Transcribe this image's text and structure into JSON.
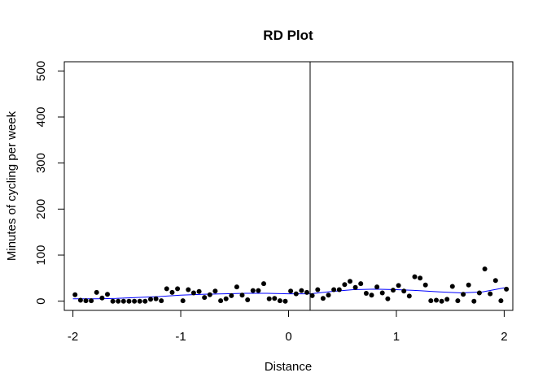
{
  "chart_data": {
    "type": "scatter",
    "title": "RD Plot",
    "xlabel": "Distance",
    "ylabel": "Minutes of cycling per week",
    "xlim": [
      -2.08,
      2.08
    ],
    "ylim": [
      -20,
      520
    ],
    "xticks": [
      -2,
      -1,
      0,
      1,
      2
    ],
    "xtick_labels": [
      "-2",
      "-1",
      "0",
      "1",
      "2"
    ],
    "yticks": [
      0,
      100,
      200,
      300,
      400,
      500
    ],
    "ytick_labels": [
      "0",
      "100",
      "200",
      "300",
      "400",
      "500"
    ],
    "cutoff": 0.2,
    "grid": false,
    "colors": {
      "points": "#000000",
      "fit": "#0000ff",
      "cutoff": "#000000"
    },
    "points": [
      [
        -1.98,
        14
      ],
      [
        -1.93,
        2
      ],
      [
        -1.88,
        1
      ],
      [
        -1.83,
        1
      ],
      [
        -1.78,
        19
      ],
      [
        -1.73,
        7
      ],
      [
        -1.68,
        15
      ],
      [
        -1.63,
        0
      ],
      [
        -1.58,
        0
      ],
      [
        -1.53,
        0
      ],
      [
        -1.48,
        0
      ],
      [
        -1.43,
        0
      ],
      [
        -1.38,
        0
      ],
      [
        -1.33,
        0
      ],
      [
        -1.28,
        4
      ],
      [
        -1.23,
        5
      ],
      [
        -1.18,
        1
      ],
      [
        -1.13,
        27
      ],
      [
        -1.08,
        19
      ],
      [
        -1.03,
        27
      ],
      [
        -0.98,
        1
      ],
      [
        -0.93,
        25
      ],
      [
        -0.88,
        18
      ],
      [
        -0.83,
        21
      ],
      [
        -0.78,
        8
      ],
      [
        -0.73,
        14
      ],
      [
        -0.68,
        22
      ],
      [
        -0.63,
        1
      ],
      [
        -0.58,
        5
      ],
      [
        -0.53,
        12
      ],
      [
        -0.48,
        31
      ],
      [
        -0.43,
        13
      ],
      [
        -0.38,
        3
      ],
      [
        -0.33,
        23
      ],
      [
        -0.28,
        23
      ],
      [
        -0.23,
        38
      ],
      [
        -0.18,
        5
      ],
      [
        -0.13,
        6
      ],
      [
        -0.08,
        1
      ],
      [
        -0.03,
        0
      ],
      [
        0.02,
        22
      ],
      [
        0.07,
        16
      ],
      [
        0.12,
        23
      ],
      [
        0.17,
        19
      ],
      [
        0.22,
        12
      ],
      [
        0.27,
        25
      ],
      [
        0.32,
        6
      ],
      [
        0.37,
        13
      ],
      [
        0.42,
        25
      ],
      [
        0.47,
        25
      ],
      [
        0.52,
        36
      ],
      [
        0.57,
        43
      ],
      [
        0.62,
        30
      ],
      [
        0.67,
        38
      ],
      [
        0.72,
        17
      ],
      [
        0.77,
        13
      ],
      [
        0.82,
        31
      ],
      [
        0.87,
        18
      ],
      [
        0.92,
        5
      ],
      [
        0.97,
        24
      ],
      [
        1.02,
        34
      ],
      [
        1.07,
        22
      ],
      [
        1.12,
        11
      ],
      [
        1.17,
        53
      ],
      [
        1.22,
        50
      ],
      [
        1.27,
        35
      ],
      [
        1.32,
        1
      ],
      [
        1.37,
        2
      ],
      [
        1.42,
        0
      ],
      [
        1.47,
        4
      ],
      [
        1.52,
        32
      ],
      [
        1.57,
        1
      ],
      [
        1.62,
        15
      ],
      [
        1.67,
        35
      ],
      [
        1.72,
        0
      ],
      [
        1.77,
        18
      ],
      [
        1.82,
        70
      ],
      [
        1.87,
        16
      ],
      [
        1.92,
        45
      ],
      [
        1.97,
        1
      ],
      [
        2.02,
        26
      ]
    ],
    "fit_left": [
      [
        -2.0,
        5
      ],
      [
        -1.8,
        5
      ],
      [
        -1.6,
        6
      ],
      [
        -1.4,
        8
      ],
      [
        -1.2,
        10
      ],
      [
        -1.0,
        13
      ],
      [
        -0.8,
        15
      ],
      [
        -0.6,
        16
      ],
      [
        -0.4,
        17
      ],
      [
        -0.2,
        17
      ],
      [
        0.0,
        16
      ],
      [
        0.2,
        16
      ]
    ],
    "fit_right": [
      [
        0.2,
        16
      ],
      [
        0.4,
        21
      ],
      [
        0.6,
        25
      ],
      [
        0.8,
        26
      ],
      [
        1.0,
        25
      ],
      [
        1.2,
        23
      ],
      [
        1.4,
        20
      ],
      [
        1.6,
        18
      ],
      [
        1.8,
        20
      ],
      [
        2.0,
        29
      ]
    ]
  }
}
